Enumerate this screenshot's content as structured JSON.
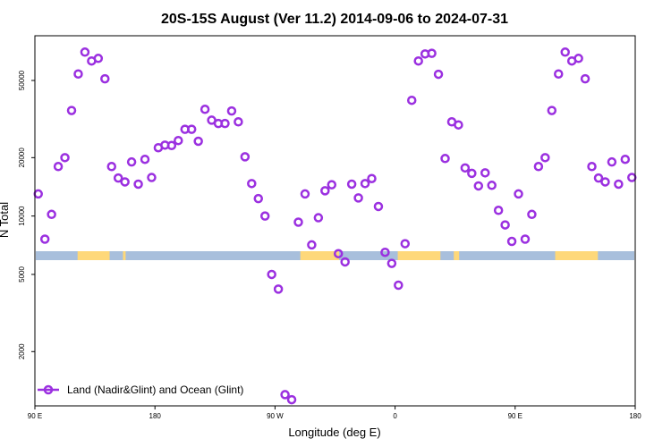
{
  "chart_data": {
    "type": "scatter",
    "title": "20S-15S August (Ver 11.2)   2014-09-06 to 2024-07-31",
    "xlabel": "Longitude (deg E)",
    "ylabel": "N Total",
    "x_ticks": [
      {
        "value": 90,
        "label": "90 E"
      },
      {
        "value": 180,
        "label": "180"
      },
      {
        "value": 270,
        "label": "90 W"
      },
      {
        "value": 360,
        "label": "0"
      },
      {
        "value": 450,
        "label": "90 E"
      },
      {
        "value": 540,
        "label": "180"
      }
    ],
    "xlim": [
      90,
      540
    ],
    "y_scale": "log",
    "ylim": [
      1050,
      85000
    ],
    "y_ticks": [
      2000,
      5000,
      10000,
      20000,
      50000
    ],
    "grid": false,
    "legend_position": "bottom-left",
    "colors": {
      "series": "#9b30e0",
      "ocean": "#a8bfdc",
      "land": "#fed87a"
    },
    "surface_strip": {
      "land_segments": [
        [
          122,
          146
        ],
        [
          156,
          158
        ],
        [
          289,
          318
        ],
        [
          362,
          394
        ],
        [
          404,
          408
        ],
        [
          480,
          512
        ]
      ]
    },
    "series": [
      {
        "name": "Land (Nadir&Glint) and Ocean (Glint)",
        "points": [
          [
            92.5,
            13000
          ],
          [
            97.5,
            7600
          ],
          [
            102.5,
            10200
          ],
          [
            107.5,
            18000
          ],
          [
            112.5,
            20000
          ],
          [
            117.5,
            35000
          ],
          [
            122.5,
            54000
          ],
          [
            127.5,
            70000
          ],
          [
            132.5,
            63000
          ],
          [
            137.5,
            65000
          ],
          [
            142.5,
            51000
          ],
          [
            147.5,
            18000
          ],
          [
            152.5,
            15700
          ],
          [
            157.5,
            15000
          ],
          [
            162.5,
            19000
          ],
          [
            167.5,
            14600
          ],
          [
            172.5,
            19600
          ],
          [
            177.5,
            15800
          ],
          [
            182.5,
            22500
          ],
          [
            187.5,
            23200
          ],
          [
            192.5,
            23100
          ],
          [
            197.5,
            24500
          ],
          [
            202.5,
            28000
          ],
          [
            207.5,
            28000
          ],
          [
            212.5,
            24300
          ],
          [
            217.5,
            35500
          ],
          [
            222.5,
            31200
          ],
          [
            227.5,
            30000
          ],
          [
            232.5,
            30000
          ],
          [
            237.5,
            34800
          ],
          [
            242.5,
            30600
          ],
          [
            247.5,
            20200
          ],
          [
            252.5,
            14700
          ],
          [
            257.5,
            12300
          ],
          [
            262.5,
            10000
          ],
          [
            267.5,
            5000
          ],
          [
            272.5,
            4200
          ],
          [
            277.5,
            1200
          ],
          [
            282.5,
            1130
          ],
          [
            287.5,
            9300
          ],
          [
            292.5,
            13000
          ],
          [
            297.5,
            7100
          ],
          [
            302.5,
            9800
          ],
          [
            307.5,
            13500
          ],
          [
            312.5,
            14500
          ],
          [
            317.5,
            6400
          ],
          [
            322.5,
            5800
          ],
          [
            327.5,
            14600
          ],
          [
            332.5,
            12400
          ],
          [
            337.5,
            14700
          ],
          [
            342.5,
            15600
          ],
          [
            347.5,
            11200
          ],
          [
            352.5,
            6500
          ],
          [
            357.5,
            5700
          ],
          [
            362.5,
            4400
          ],
          [
            367.5,
            7200
          ],
          [
            372.5,
            39500
          ],
          [
            377.5,
            63000
          ],
          [
            382.5,
            68500
          ],
          [
            387.5,
            69000
          ],
          [
            392.5,
            53800
          ],
          [
            397.5,
            19800
          ],
          [
            402.5,
            30600
          ],
          [
            407.5,
            29500
          ],
          [
            412.5,
            17700
          ],
          [
            417.5,
            16600
          ],
          [
            422.5,
            14300
          ],
          [
            427.5,
            16700
          ],
          [
            432.5,
            14400
          ],
          [
            437.5,
            10700
          ],
          [
            442.5,
            9000
          ],
          [
            447.5,
            7400
          ],
          [
            452.5,
            13000
          ],
          [
            457.5,
            7600
          ],
          [
            462.5,
            10200
          ],
          [
            467.5,
            18000
          ],
          [
            472.5,
            20000
          ],
          [
            477.5,
            35000
          ],
          [
            482.5,
            54000
          ],
          [
            487.5,
            70000
          ],
          [
            492.5,
            63000
          ],
          [
            497.5,
            65000
          ],
          [
            502.5,
            51000
          ],
          [
            507.5,
            18000
          ],
          [
            512.5,
            15700
          ],
          [
            517.5,
            15000
          ],
          [
            522.5,
            19000
          ],
          [
            527.5,
            14600
          ],
          [
            532.5,
            19600
          ],
          [
            537.5,
            15800
          ]
        ]
      }
    ]
  }
}
